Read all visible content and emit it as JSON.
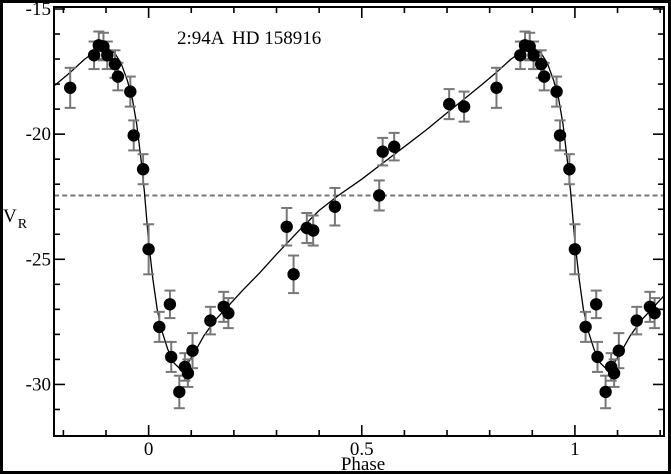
{
  "figure": {
    "title_code": "2:94A",
    "title_star": "HD 158916",
    "xlabel": "Phase",
    "ylabel_main": "V",
    "ylabel_sub": "R"
  },
  "chart_data": {
    "type": "scatter",
    "title": "2:94A HD 158916",
    "xlabel": "Phase",
    "ylabel": "V_R",
    "legend": "none",
    "grid": "off",
    "x_axis": {
      "min": -0.222,
      "max": 1.209,
      "major_ticks": [
        0,
        0.5,
        1
      ],
      "major_labels": [
        "0",
        "0.5",
        "1"
      ],
      "minor_start": -0.2,
      "minor_step": 0.1,
      "minor_end": 1.2
    },
    "y_axis": {
      "min": -32.06,
      "max": -14.92,
      "major_ticks": [
        -15,
        -20,
        -25,
        -30
      ],
      "major_labels": [
        "-15",
        "-20",
        "-25",
        "-30"
      ],
      "minor_start": -31,
      "minor_step": 1,
      "minor_end": -15
    },
    "systemic_velocity_dashed_line": -22.45,
    "wrap_duplicates": true,
    "points": [
      [
        0.0,
        -24.6,
        1.0
      ],
      [
        0.025,
        -27.7,
        0.6
      ],
      [
        0.05,
        -26.8,
        0.55
      ],
      [
        0.053,
        -28.9,
        0.6
      ],
      [
        0.072,
        -30.3,
        0.65
      ],
      [
        0.085,
        -29.3,
        0.55
      ],
      [
        0.092,
        -29.55,
        0.55
      ],
      [
        0.103,
        -28.65,
        0.7
      ],
      [
        0.145,
        -27.45,
        0.55
      ],
      [
        0.176,
        -26.9,
        0.6
      ],
      [
        0.187,
        -27.15,
        0.6
      ],
      [
        0.324,
        -23.7,
        0.75
      ],
      [
        0.34,
        -25.6,
        0.75
      ],
      [
        0.371,
        -23.75,
        0.6
      ],
      [
        0.386,
        -23.85,
        0.6
      ],
      [
        0.437,
        -22.9,
        0.75
      ],
      [
        0.541,
        -22.45,
        0.6
      ],
      [
        0.549,
        -20.7,
        0.55
      ],
      [
        0.576,
        -20.5,
        0.55
      ],
      [
        0.705,
        -18.8,
        0.6
      ],
      [
        0.74,
        -18.9,
        0.6
      ],
      [
        0.816,
        -18.15,
        0.8
      ],
      [
        0.872,
        -16.85,
        0.55
      ],
      [
        0.883,
        -16.45,
        0.55
      ],
      [
        0.894,
        -16.5,
        0.55
      ],
      [
        0.903,
        -16.85,
        0.55
      ],
      [
        0.921,
        -17.2,
        0.55
      ],
      [
        0.928,
        -17.7,
        0.55
      ],
      [
        0.957,
        -18.3,
        0.6
      ],
      [
        0.965,
        -20.05,
        0.6
      ],
      [
        0.987,
        -21.4,
        0.6
      ]
    ],
    "fit_curve": [
      [
        0.0,
        -24.3
      ],
      [
        0.01,
        -25.8
      ],
      [
        0.02,
        -27.0
      ],
      [
        0.03,
        -27.8
      ],
      [
        0.045,
        -28.6
      ],
      [
        0.06,
        -29.15
      ],
      [
        0.075,
        -29.4
      ],
      [
        0.09,
        -29.2
      ],
      [
        0.105,
        -28.8
      ],
      [
        0.13,
        -28.05
      ],
      [
        0.155,
        -27.45
      ],
      [
        0.185,
        -26.9
      ],
      [
        0.22,
        -26.25
      ],
      [
        0.26,
        -25.55
      ],
      [
        0.3,
        -24.8
      ],
      [
        0.35,
        -23.9
      ],
      [
        0.4,
        -23.05
      ],
      [
        0.445,
        -22.45
      ],
      [
        0.5,
        -21.8
      ],
      [
        0.55,
        -21.15
      ],
      [
        0.6,
        -20.5
      ],
      [
        0.65,
        -19.85
      ],
      [
        0.7,
        -19.15
      ],
      [
        0.74,
        -18.6
      ],
      [
        0.78,
        -18.05
      ],
      [
        0.815,
        -17.55
      ],
      [
        0.85,
        -17.0
      ],
      [
        0.875,
        -16.7
      ],
      [
        0.9,
        -16.52
      ],
      [
        0.92,
        -16.75
      ],
      [
        0.935,
        -17.15
      ],
      [
        0.95,
        -17.85
      ],
      [
        0.962,
        -18.6
      ],
      [
        0.972,
        -19.6
      ],
      [
        0.982,
        -21.0
      ],
      [
        0.99,
        -22.3
      ],
      [
        1.0,
        -24.3
      ]
    ],
    "colors": {
      "point": "#000000",
      "curve": "#000000",
      "error_bar": "#777777",
      "dashed_line": "#777777",
      "frame": "#000000",
      "border": "#000000",
      "background": "#ffffff"
    }
  }
}
